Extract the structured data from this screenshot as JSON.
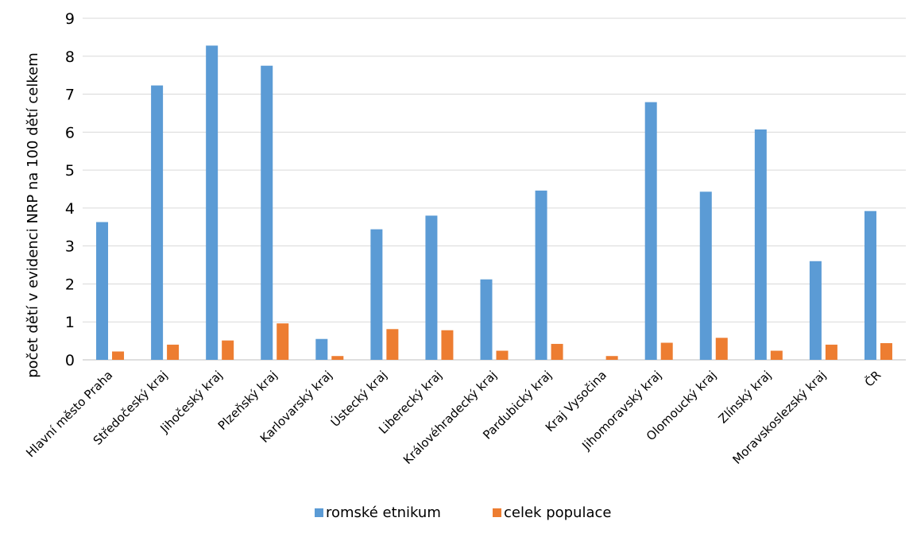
{
  "chart_data": {
    "type": "bar",
    "title": "",
    "xlabel": "",
    "ylabel": "počet dětí v evidenci NRP na 100 dětí celkem",
    "ylim": [
      0,
      9
    ],
    "yticks": [
      "0",
      "1",
      "2",
      "3",
      "4",
      "5",
      "6",
      "7",
      "8",
      "9"
    ],
    "grid": true,
    "legend_position": "bottom",
    "categories": [
      "Hlavní město Praha",
      "Středočeský kraj",
      "Jihočeský kraj",
      "Plzeňský kraj",
      "Karlovarský kraj",
      "Ústecký kraj",
      "Liberecký kraj",
      "Královéhradecký kraj",
      "Pardubický kraj",
      "Kraj Vysočina",
      "Jihomoravský kraj",
      "Olomoucký kraj",
      "Zlínský kraj",
      "Moravskoslezský kraj",
      "ČR"
    ],
    "series": [
      {
        "name": "romské etnikum",
        "color": "#5B9BD5",
        "values": [
          3.63,
          7.23,
          8.28,
          7.75,
          0.55,
          3.44,
          3.8,
          2.12,
          4.46,
          0,
          6.79,
          4.43,
          6.07,
          2.6,
          3.92
        ]
      },
      {
        "name": "celek populace",
        "color": "#ED7D31",
        "values": [
          0.22,
          0.4,
          0.51,
          0.96,
          0.1,
          0.81,
          0.78,
          0.24,
          0.42,
          0.1,
          0.45,
          0.58,
          0.24,
          0.4,
          0.44
        ]
      }
    ]
  }
}
